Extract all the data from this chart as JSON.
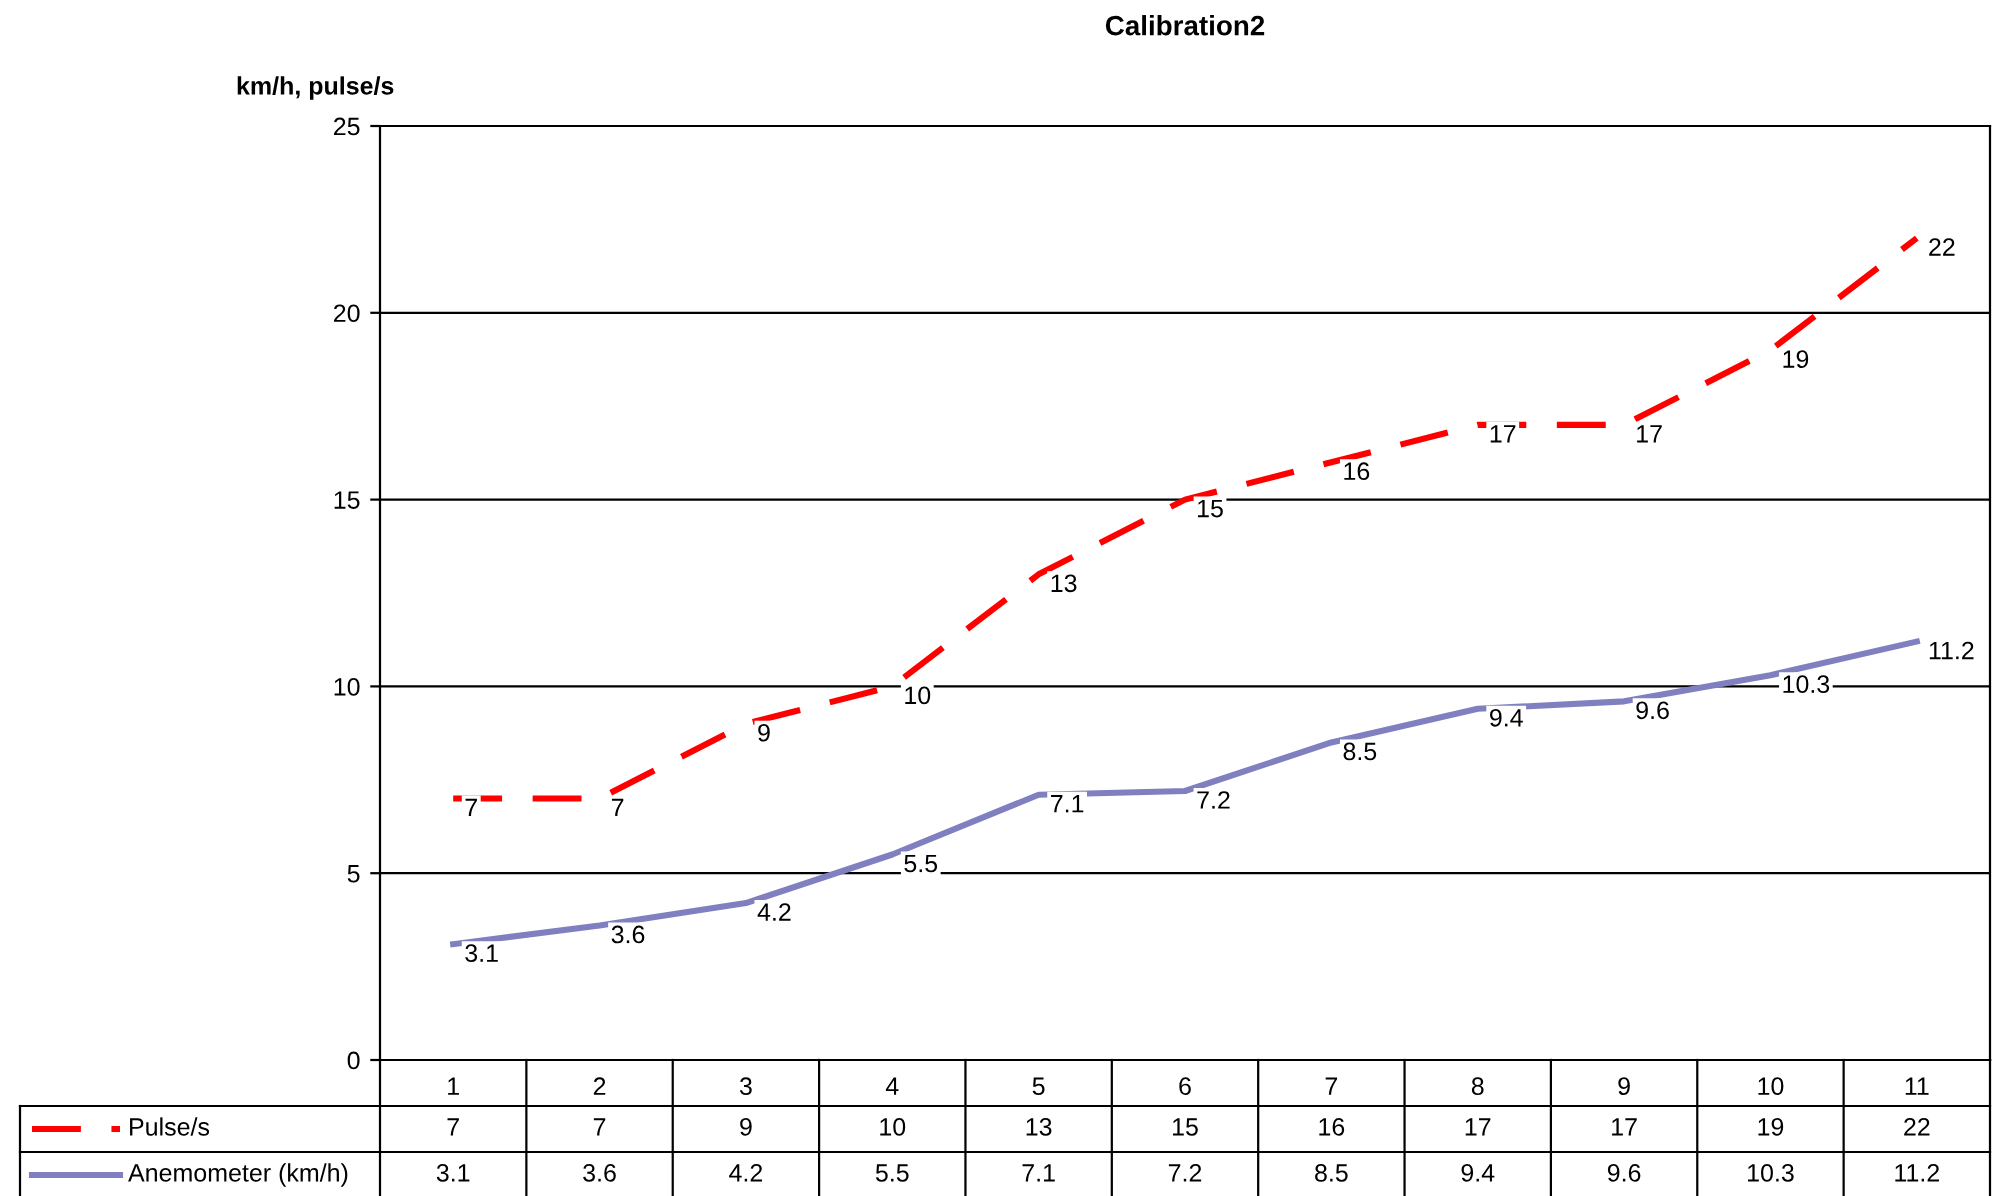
{
  "chart_data": {
    "type": "line",
    "title": "Calibration2",
    "ylabel": "km/h, pulse/s",
    "categories": [
      "1",
      "2",
      "3",
      "4",
      "5",
      "6",
      "7",
      "8",
      "9",
      "10",
      "11"
    ],
    "series": [
      {
        "name": "Pulse/s",
        "color": "#ff0000",
        "line_style": "dashed",
        "values": [
          7,
          7,
          9,
          10,
          13,
          15,
          16,
          17,
          17,
          19,
          22
        ]
      },
      {
        "name": "Anemometer (km/h)",
        "color": "#8080c0",
        "line_style": "solid",
        "values": [
          3.1,
          3.6,
          4.2,
          5.5,
          7.1,
          7.2,
          8.5,
          9.4,
          9.6,
          10.3,
          11.2
        ]
      }
    ],
    "annotations": [
      {
        "text": "7",
        "x": "1",
        "y": 7
      },
      {
        "text": "7",
        "x": "2",
        "y": 7
      },
      {
        "text": "9",
        "x": "3",
        "y": 9
      },
      {
        "text": "10",
        "x": "4",
        "y": 10
      },
      {
        "text": "13",
        "x": "5",
        "y": 13
      },
      {
        "text": "15",
        "x": "6",
        "y": 15
      },
      {
        "text": "16",
        "x": "7",
        "y": 16
      },
      {
        "text": "17",
        "x": "8",
        "y": 17
      },
      {
        "text": "17",
        "x": "9",
        "y": 17
      },
      {
        "text": "19",
        "x": "10",
        "y": 19
      },
      {
        "text": "22",
        "x": "11",
        "y": 22
      },
      {
        "text": "3.1",
        "x": "1",
        "y": 3.1
      },
      {
        "text": "3.6",
        "x": "2",
        "y": 3.6
      },
      {
        "text": "4.2",
        "x": "3",
        "y": 4.2
      },
      {
        "text": "5.5",
        "x": "4",
        "y": 5.5
      },
      {
        "text": "7.1",
        "x": "5",
        "y": 7.1
      },
      {
        "text": "7.2",
        "x": "6",
        "y": 7.2
      },
      {
        "text": "8.5",
        "x": "7",
        "y": 8.5
      },
      {
        "text": "9.4",
        "x": "8",
        "y": 9.4
      },
      {
        "text": "9.6",
        "x": "9",
        "y": 9.6
      },
      {
        "text": "10.3",
        "x": "10",
        "y": 10.3
      },
      {
        "text": "11.2",
        "x": "11",
        "y": 11.2
      }
    ],
    "ylim": [
      0,
      25
    ],
    "yticks": [
      0,
      5,
      10,
      15,
      20,
      25
    ],
    "grid": "y",
    "legend": "bottom left",
    "data_labels": true,
    "marker": "none"
  }
}
